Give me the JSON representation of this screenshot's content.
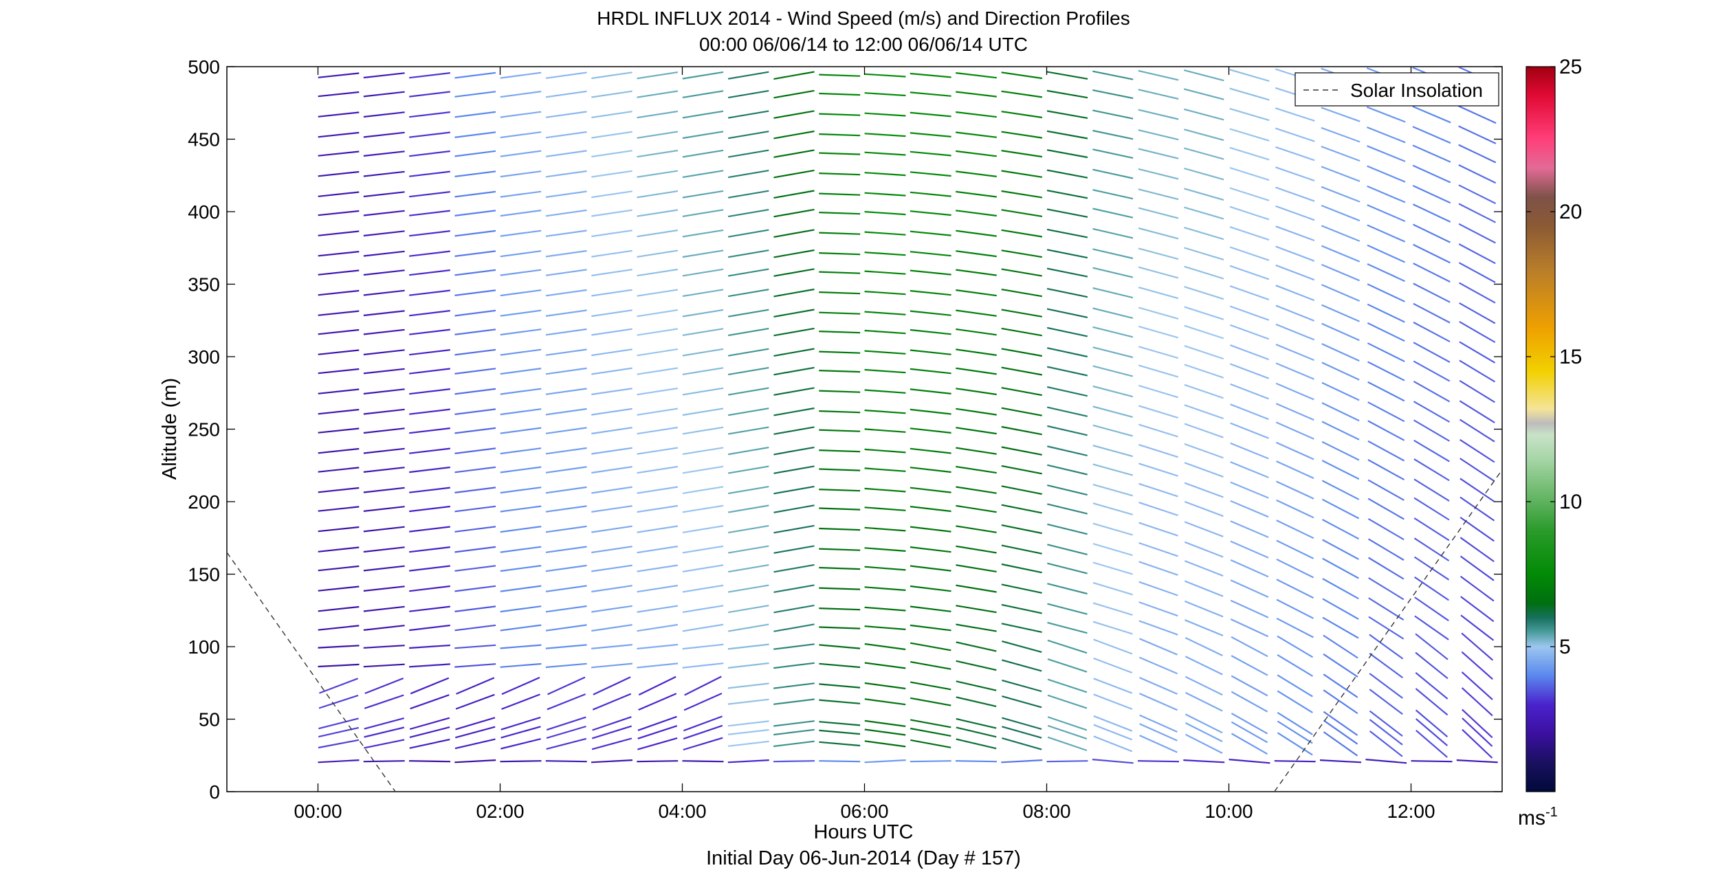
{
  "chart_data": {
    "type": "wind-barb-profile",
    "title": "HRDL INFLUX 2014 - Wind Speed (m/s) and Direction Profiles",
    "subtitle": "00:00 06/06/14 to 12:00 06/06/14  UTC",
    "xlabel": "Hours UTC",
    "xlabel2": "Initial Day 06-Jun-2014 (Day # 157)",
    "ylabel": "Altitude (m)",
    "xlim": [
      -1.0,
      13.0
    ],
    "ylim": [
      0,
      500
    ],
    "x_ticks": [
      0,
      2,
      4,
      6,
      8,
      10,
      12
    ],
    "x_tick_labels": [
      "00:00",
      "02:00",
      "04:00",
      "06:00",
      "08:00",
      "10:00",
      "12:00"
    ],
    "y_ticks": [
      0,
      50,
      100,
      150,
      200,
      250,
      300,
      350,
      400,
      450,
      500
    ],
    "y_tick_labels": [
      "0",
      "50",
      "100",
      "150",
      "200",
      "250",
      "300",
      "350",
      "400",
      "450",
      "500"
    ],
    "profile_times_hours": [
      0.0,
      0.5,
      1.0,
      1.5,
      2.0,
      2.5,
      3.0,
      3.5,
      4.0,
      4.5,
      5.0,
      5.5,
      6.0,
      6.5,
      7.0,
      7.5,
      8.0,
      8.5,
      9.0,
      9.5,
      10.0,
      10.5,
      11.0,
      11.5,
      12.0,
      12.5
    ],
    "altitude_levels_m": [
      21,
      33,
      41,
      47,
      62,
      73,
      87,
      100,
      113,
      126,
      140,
      154,
      167,
      181,
      195,
      208,
      222,
      235,
      249,
      262,
      276,
      290,
      303,
      317,
      330,
      344,
      358,
      371,
      385,
      399,
      412,
      426,
      440,
      453,
      467,
      481,
      494
    ],
    "wind_speed_low_layer_ms": [
      2.5,
      2.3,
      2.0,
      2.0,
      2.2,
      2.4,
      2.3,
      2.2,
      2.3,
      3.0,
      3.5,
      4.0,
      4.3,
      4.2,
      4.0,
      3.8,
      3.6,
      3.4,
      3.1,
      3.0,
      2.8,
      2.7,
      2.6,
      2.6,
      2.5,
      2.4
    ],
    "wind_speed_upper_layer_ms": [
      2.3,
      2.4,
      3.0,
      3.8,
      4.3,
      4.5,
      4.8,
      5.0,
      5.2,
      5.6,
      6.3,
      7.0,
      7.3,
      7.2,
      7.0,
      6.7,
      6.0,
      5.3,
      5.0,
      5.0,
      4.8,
      4.6,
      4.3,
      4.0,
      3.8,
      3.6
    ],
    "legend": {
      "label": "Solar Insolation",
      "position": "top-right",
      "style": "dashed"
    },
    "solar_insolation_line": {
      "evening_segment": {
        "x": [
          -1.0,
          0.85
        ],
        "y": [
          165,
          0
        ]
      },
      "morning_segment": {
        "x": [
          10.5,
          13.0
        ],
        "y": [
          0,
          222
        ]
      }
    },
    "colorbar": {
      "min": 0,
      "max": 25,
      "ticks": [
        5,
        10,
        15,
        20,
        25
      ],
      "tick_labels": [
        "5",
        "10",
        "15",
        "20",
        "25"
      ],
      "unit_label": "ms",
      "unit_exponent": "-1",
      "colormap_stops": [
        [
          0.0,
          "#000a3a"
        ],
        [
          1.0,
          "#1a1060"
        ],
        [
          2.0,
          "#3b10a0"
        ],
        [
          3.0,
          "#4a22cc"
        ],
        [
          4.0,
          "#5a88ee"
        ],
        [
          5.0,
          "#9cc6ef"
        ],
        [
          5.5,
          "#4b9d9d"
        ],
        [
          6.0,
          "#17705c"
        ],
        [
          6.5,
          "#006f10"
        ],
        [
          7.5,
          "#028a06"
        ],
        [
          9.0,
          "#2a9b2a"
        ],
        [
          10.0,
          "#5eb25e"
        ],
        [
          11.5,
          "#a8d6a8"
        ],
        [
          12.3,
          "#c8e2c8"
        ],
        [
          12.7,
          "#bcbcbc"
        ],
        [
          13.2,
          "#f4e498"
        ],
        [
          14.5,
          "#f2d000"
        ],
        [
          16.0,
          "#eea000"
        ],
        [
          18.0,
          "#b87d2a"
        ],
        [
          19.5,
          "#8b5a34"
        ],
        [
          20.5,
          "#7e5248"
        ],
        [
          21.5,
          "#e26a96"
        ],
        [
          22.5,
          "#ff3f7a"
        ],
        [
          24.0,
          "#e10a34"
        ],
        [
          25.0,
          "#a00010"
        ]
      ]
    }
  }
}
